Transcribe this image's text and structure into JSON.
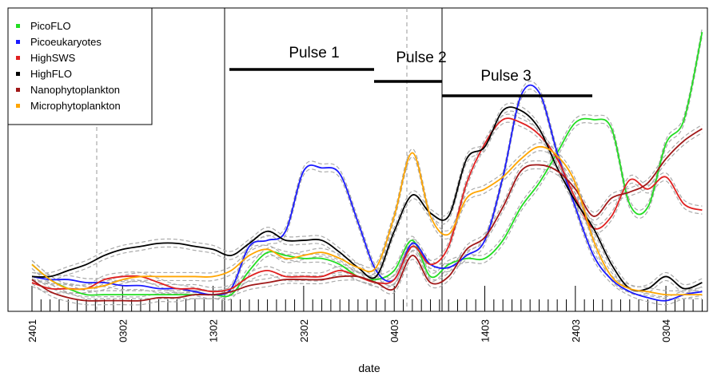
{
  "chart_data": {
    "type": "line",
    "x_label": "date",
    "categories": [
      "2401",
      null,
      null,
      null,
      null,
      "0302",
      null,
      null,
      null,
      null,
      "1302",
      null,
      null,
      null,
      null,
      "2302",
      null,
      null,
      null,
      null,
      "0403",
      null,
      null,
      null,
      null,
      "1403",
      null,
      null,
      null,
      null,
      "2403",
      null,
      null,
      null,
      null,
      "0304",
      null,
      null
    ],
    "series": [
      {
        "name": "PicoFLO",
        "color": "#22dd22",
        "values": [
          15,
          10,
          7,
          5,
          5,
          5,
          5,
          5,
          5,
          5,
          5,
          5,
          13,
          19,
          18,
          17,
          17,
          15,
          11,
          10,
          13,
          23,
          11,
          15,
          17,
          17,
          23,
          34,
          42,
          52,
          62,
          63,
          60,
          35,
          34,
          55,
          63,
          92
        ]
      },
      {
        "name": "Picoeukaryotes",
        "color": "#1a1aff",
        "values": [
          11,
          10,
          10,
          9,
          9,
          8,
          8,
          7,
          7,
          6,
          5,
          7,
          21,
          23,
          26,
          46,
          47,
          45,
          29,
          13,
          10,
          22,
          15,
          14,
          18,
          23,
          44,
          71,
          72,
          52,
          34,
          18,
          10,
          6,
          4,
          3,
          5,
          6
        ]
      },
      {
        "name": "HighSWS",
        "color": "#e02020",
        "values": [
          9,
          7,
          7,
          7,
          10,
          11,
          11,
          9,
          7,
          7,
          6,
          7,
          11,
          13,
          11,
          11,
          11,
          13,
          11,
          9,
          10,
          21,
          15,
          21,
          42,
          55,
          63,
          62,
          58,
          50,
          37,
          27,
          31,
          43,
          40,
          44,
          35,
          33
        ]
      },
      {
        "name": "HighFLO",
        "color": "#000000",
        "values": [
          11,
          11,
          13,
          15,
          18,
          20,
          21,
          22,
          22,
          21,
          20,
          18,
          22,
          26,
          23,
          23,
          23,
          19,
          14,
          11,
          26,
          38,
          32,
          31,
          50,
          54,
          66,
          66,
          60,
          47,
          36,
          27,
          15,
          7,
          7,
          11,
          7,
          9
        ]
      },
      {
        "name": "Nanophytoplankton",
        "color": "#a01818",
        "values": [
          10,
          6,
          4,
          3,
          3,
          3,
          3,
          4,
          4,
          5,
          5,
          6,
          8,
          9,
          10,
          10,
          10,
          11,
          11,
          9,
          7,
          18,
          9,
          11,
          20,
          24,
          34,
          46,
          48,
          46,
          40,
          31,
          37,
          39,
          42,
          50,
          56,
          60
        ]
      },
      {
        "name": "Microphytoplankton",
        "color": "#ffa500",
        "values": [
          15,
          10,
          7,
          7,
          8,
          10,
          11,
          11,
          11,
          11,
          11,
          13,
          18,
          20,
          17,
          18,
          19,
          17,
          14,
          14,
          31,
          52,
          31,
          25,
          37,
          40,
          44,
          50,
          54,
          51,
          42,
          23,
          11,
          7,
          6,
          5,
          5,
          5
        ]
      }
    ],
    "annotations": [
      "Pulse 1",
      "Pulse 2",
      "Pulse 3"
    ],
    "ylim": [
      0,
      100
    ],
    "legend": "top-left"
  }
}
